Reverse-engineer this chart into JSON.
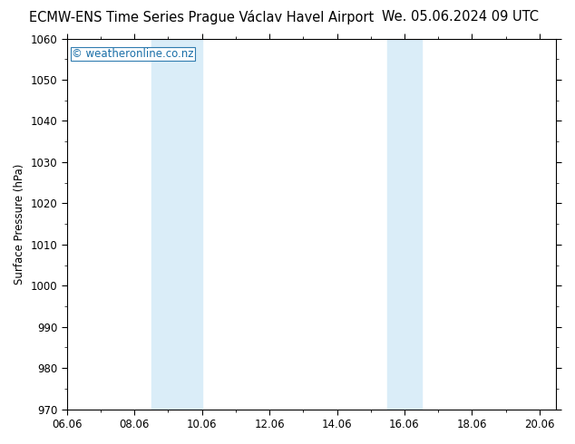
{
  "title_left": "ECMW-ENS Time Series Prague Václav Havel Airport",
  "title_right": "We. 05.06.2024 09 UTC",
  "ylabel": "Surface Pressure (hPa)",
  "xlim": [
    6.0,
    20.5
  ],
  "ylim": [
    970,
    1060
  ],
  "yticks": [
    970,
    980,
    990,
    1000,
    1010,
    1020,
    1030,
    1040,
    1050,
    1060
  ],
  "xtick_labels": [
    "06.06",
    "08.06",
    "10.06",
    "12.06",
    "14.06",
    "16.06",
    "18.06",
    "20.06"
  ],
  "xtick_positions": [
    6.0,
    8.0,
    10.0,
    12.0,
    14.0,
    16.0,
    18.0,
    20.0
  ],
  "shaded_bands": [
    {
      "xmin": 8.5,
      "xmax": 10.0
    },
    {
      "xmin": 15.5,
      "xmax": 16.5
    }
  ],
  "shade_color": "#daedf8",
  "watermark": "© weatheronline.co.nz",
  "watermark_color": "#1a6fa8",
  "bg_color": "#ffffff",
  "tick_color": "#000000",
  "title_fontsize": 10.5,
  "axis_fontsize": 8.5,
  "watermark_fontsize": 8.5,
  "minor_xtick_positions": [
    7.0,
    9.0,
    11.0,
    13.0,
    15.0,
    17.0,
    19.0
  ]
}
